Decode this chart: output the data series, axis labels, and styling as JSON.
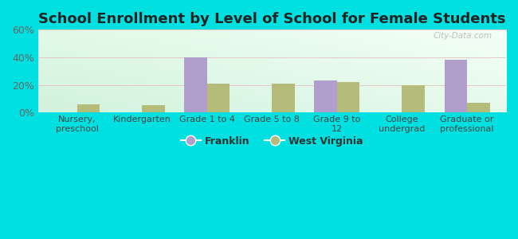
{
  "title": "School Enrollment by Level of School for Female Students",
  "categories": [
    "Nursery,\npreschool",
    "Kindergarten",
    "Grade 1 to 4",
    "Grade 5 to 8",
    "Grade 9 to\n12",
    "College\nundergrad",
    "Graduate or\nprofessional"
  ],
  "franklin_values": [
    0,
    0,
    40,
    0,
    23,
    0,
    38
  ],
  "wv_values": [
    6,
    5,
    21,
    21,
    22,
    20,
    7
  ],
  "franklin_color": "#b09fcc",
  "wv_color": "#b5bc7a",
  "ylim": [
    0,
    60
  ],
  "yticks": [
    0,
    20,
    40,
    60
  ],
  "ytick_labels": [
    "0%",
    "20%",
    "40%",
    "60%"
  ],
  "background_color": "#00e0e0",
  "legend_franklin": "Franklin",
  "legend_wv": "West Virginia",
  "title_fontsize": 13,
  "bar_width": 0.35,
  "watermark": "City-Data.com"
}
